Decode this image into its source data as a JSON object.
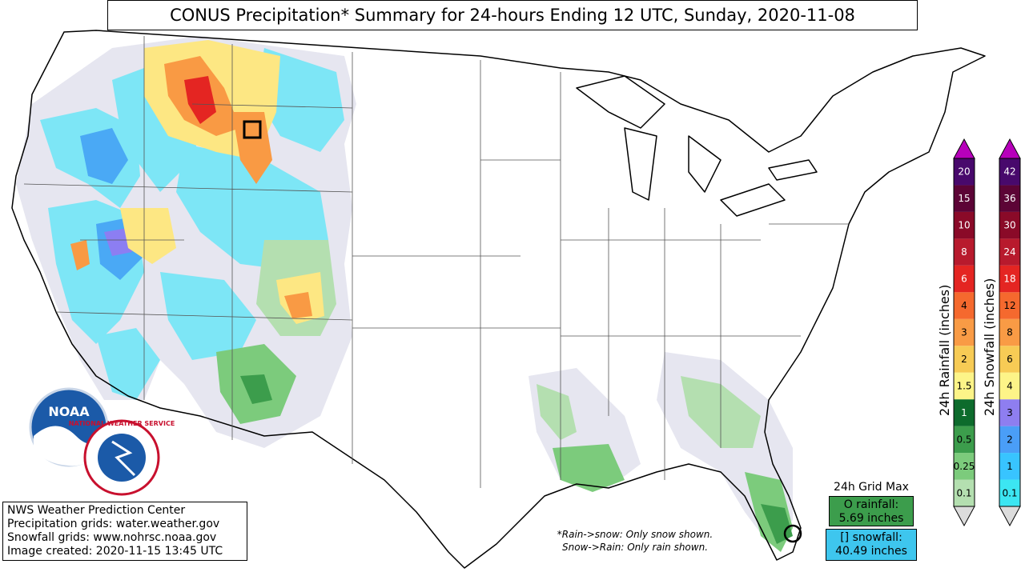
{
  "title": "CONUS Precipitation* Summary for 24-hours Ending 12 UTC, Sunday, 2020-11-08",
  "info": {
    "line1": "NWS Weather Prediction Center",
    "line2": "Precipitation grids: water.weather.gov",
    "line3": "Snowfall grids: www.nohrsc.noaa.gov",
    "line4": "Image created: 2020-11-15 13:45 UTC"
  },
  "note": {
    "line1": "*Rain->snow: Only snow shown.",
    "line2": "Snow->Rain: Only rain shown."
  },
  "grid_max": {
    "title": "24h Grid Max",
    "rain_line1": "O rainfall:",
    "rain_line2": "5.69 inches",
    "snow_line1": "[] snowfall:",
    "snow_line2": "40.49 inches"
  },
  "rain_scale": {
    "label": "24h Rainfall (inches)",
    "ticks": [
      "0.1",
      "0.25",
      "0.5",
      "1",
      "1.5",
      "2",
      "3",
      "4",
      "6",
      "8",
      "10",
      "15",
      "20"
    ],
    "colors": [
      "#b4dfb0",
      "#7ccb7c",
      "#3c9d4c",
      "#0d6b2c",
      "#fdf488",
      "#f7cb55",
      "#f99b45",
      "#f5692e",
      "#e42522",
      "#b81a2d",
      "#8a0a28",
      "#5c0436",
      "#48096c"
    ],
    "under_color": "#dcdcdc",
    "over_color": "#b700bb"
  },
  "snow_scale": {
    "label": "24h Snowfall (inches)",
    "ticks": [
      "0.1",
      "1",
      "2",
      "3",
      "4",
      "6",
      "8",
      "12",
      "18",
      "24",
      "30",
      "36",
      "42"
    ],
    "colors": [
      "#3ce6f2",
      "#38c4ff",
      "#4a9ef7",
      "#8e7ef0",
      "#fdf488",
      "#f7cb55",
      "#f99b45",
      "#f5692e",
      "#e42522",
      "#b81a2d",
      "#8a0a28",
      "#5c0436",
      "#48096c"
    ],
    "under_color": "#dcdcdc",
    "over_color": "#b700bb"
  },
  "logos": {
    "noaa_text": "NOAA",
    "nws_text": "NATIONAL WEATHER SERVICE"
  },
  "map": {
    "colors": {
      "gray": "#e2e2ee",
      "light_blue": "#7de6f6",
      "cyan": "#26d8f2",
      "blue": "#4aa9f5",
      "purple": "#8c7ef2",
      "yellow": "#fde783",
      "orange": "#f99a44",
      "red": "#e42522",
      "light_green": "#b4dfb0",
      "green": "#7ccb7c",
      "dark_green": "#3c9d4c"
    },
    "icons": [
      "max-snowfall-square-icon",
      "max-rainfall-circle-icon"
    ]
  }
}
